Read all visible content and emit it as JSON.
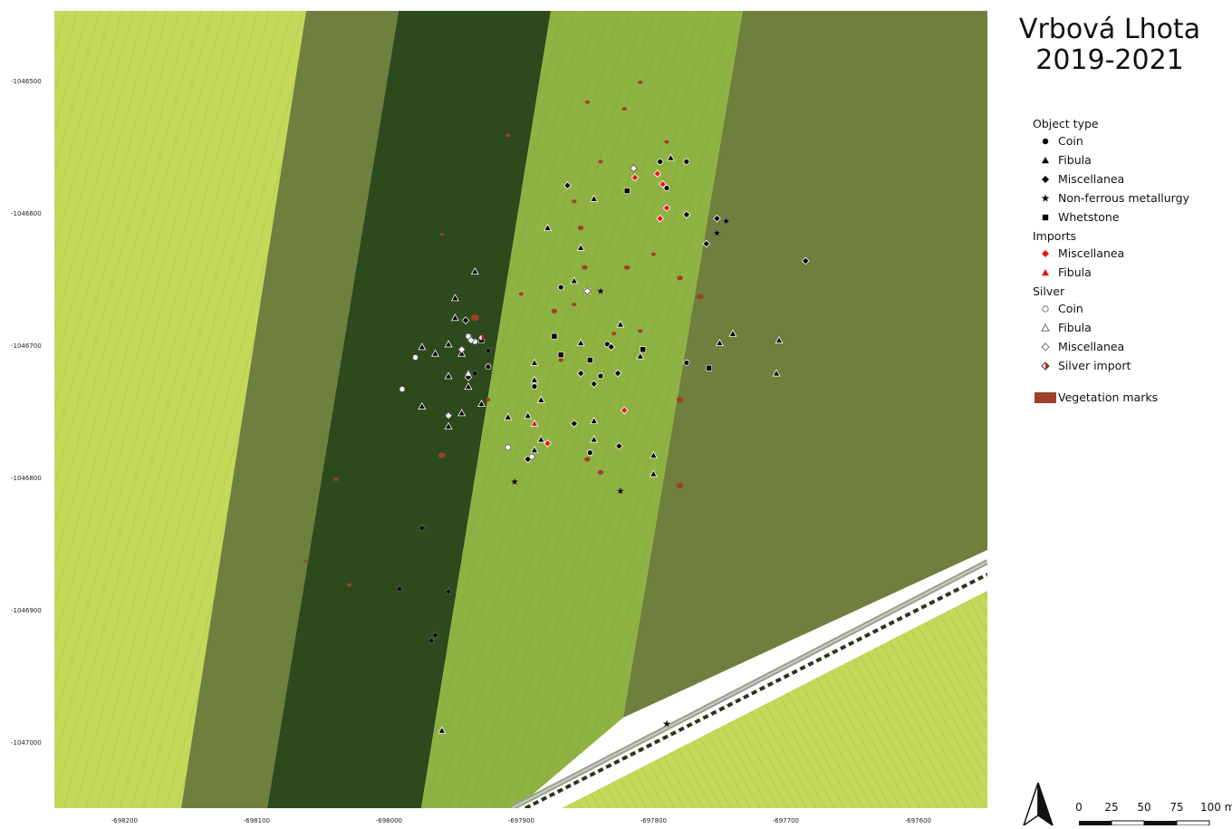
{
  "map": {
    "title_line1": "Vrbová Lhota",
    "title_line2": "2019-2021",
    "y_ticks": [
      "-1046500",
      "-1046600",
      "-1046700",
      "-1046800",
      "-1046900",
      "-1047000"
    ],
    "x_ticks": [
      "-698200",
      "-698100",
      "-698000",
      "-697900",
      "-697800",
      "-697700",
      "-697600"
    ],
    "colors": {
      "field_yellow": "#c4d85a",
      "field_dark": "#2d4a1d",
      "field_mid": "#8fb342",
      "field_olive": "#6e7f3e",
      "vegetation_marks": "#a0402a",
      "import_red": "#e8141a"
    }
  },
  "legend": {
    "object_type_heading": "Object type",
    "object_types": [
      {
        "label": "Coin",
        "icon": "filled-circle-icon"
      },
      {
        "label": "Fibula",
        "icon": "filled-triangle-icon"
      },
      {
        "label": "Miscellanea",
        "icon": "filled-diamond-icon"
      },
      {
        "label": "Non-ferrous metallurgy",
        "icon": "filled-star-icon"
      },
      {
        "label": "Whetstone",
        "icon": "filled-square-icon"
      }
    ],
    "imports_heading": "Imports",
    "imports": [
      {
        "label": "Miscellanea",
        "icon": "red-diamond-icon"
      },
      {
        "label": "Fibula",
        "icon": "red-triangle-icon"
      }
    ],
    "silver_heading": "Silver",
    "silver": [
      {
        "label": "Coin",
        "icon": "open-circle-icon"
      },
      {
        "label": "Fibula",
        "icon": "open-triangle-icon"
      },
      {
        "label": "Miscellanea",
        "icon": "open-diamond-icon"
      },
      {
        "label": "Silver import",
        "icon": "half-red-diamond-icon"
      }
    ],
    "vegetation_label": "Vegetation marks"
  },
  "scalebar": {
    "labels": [
      "0",
      "25",
      "50",
      "75",
      "100 m"
    ]
  },
  "finds": [
    {
      "type": "coin",
      "x": -697795,
      "y": -1046560
    },
    {
      "type": "coin",
      "x": -697790,
      "y": -1046580
    },
    {
      "type": "coin",
      "x": -697775,
      "y": -1046560
    },
    {
      "type": "coin",
      "x": -697870,
      "y": -1046655
    },
    {
      "type": "coin",
      "x": -697835,
      "y": -1046698
    },
    {
      "type": "coin",
      "x": -697925,
      "y": -1046715
    },
    {
      "type": "coin",
      "x": -697840,
      "y": -1046722
    },
    {
      "type": "coin",
      "x": -697775,
      "y": -1046712
    },
    {
      "type": "coin",
      "x": -697848,
      "y": -1046780
    },
    {
      "type": "coin",
      "x": -697890,
      "y": -1046730
    },
    {
      "type": "fibula",
      "x": -697787,
      "y": -1046557
    },
    {
      "type": "fibula",
      "x": -697845,
      "y": -1046588
    },
    {
      "type": "fibula",
      "x": -697880,
      "y": -1046610
    },
    {
      "type": "fibula",
      "x": -697855,
      "y": -1046625
    },
    {
      "type": "fibula",
      "x": -697935,
      "y": -1046643
    },
    {
      "type": "fibula",
      "x": -697950,
      "y": -1046663
    },
    {
      "type": "fibula",
      "x": -697950,
      "y": -1046678
    },
    {
      "type": "fibula",
      "x": -697965,
      "y": -1046705
    },
    {
      "type": "fibula",
      "x": -697955,
      "y": -1046722
    },
    {
      "type": "fibula",
      "x": -697940,
      "y": -1046730
    },
    {
      "type": "fibula",
      "x": -697975,
      "y": -1046700
    },
    {
      "type": "fibula",
      "x": -697955,
      "y": -1046698
    },
    {
      "type": "fibula",
      "x": -697945,
      "y": -1046705
    },
    {
      "type": "fibula",
      "x": -697945,
      "y": -1046750
    },
    {
      "type": "fibula",
      "x": -697955,
      "y": -1046760
    },
    {
      "type": "fibula",
      "x": -697975,
      "y": -1046745
    },
    {
      "type": "fibula",
      "x": -697930,
      "y": -1046743
    },
    {
      "type": "fibula",
      "x": -697895,
      "y": -1046752
    },
    {
      "type": "fibula",
      "x": -697890,
      "y": -1046712
    },
    {
      "type": "fibula",
      "x": -697890,
      "y": -1046725
    },
    {
      "type": "fibula",
      "x": -697885,
      "y": -1046740
    },
    {
      "type": "fibula",
      "x": -697885,
      "y": -1046770
    },
    {
      "type": "fibula",
      "x": -697890,
      "y": -1046778
    },
    {
      "type": "fibula",
      "x": -697860,
      "y": -1046650
    },
    {
      "type": "fibula",
      "x": -697855,
      "y": -1046697
    },
    {
      "type": "fibula",
      "x": -697825,
      "y": -1046683
    },
    {
      "type": "fibula",
      "x": -697845,
      "y": -1046756
    },
    {
      "type": "fibula",
      "x": -697845,
      "y": -1046770
    },
    {
      "type": "fibula",
      "x": -697810,
      "y": -1046707
    },
    {
      "type": "fibula",
      "x": -697800,
      "y": -1046782
    },
    {
      "type": "fibula",
      "x": -697800,
      "y": -1046796
    },
    {
      "type": "fibula",
      "x": -697740,
      "y": -1046690
    },
    {
      "type": "fibula",
      "x": -697705,
      "y": -1046695
    },
    {
      "type": "fibula",
      "x": -697707,
      "y": -1046720
    },
    {
      "type": "fibula",
      "x": -697750,
      "y": -1046697
    },
    {
      "type": "fibula",
      "x": -697910,
      "y": -1046753
    },
    {
      "type": "fibula",
      "x": -697960,
      "y": -1046990
    },
    {
      "type": "misc",
      "x": -697865,
      "y": -1046578
    },
    {
      "type": "misc",
      "x": -697775,
      "y": -1046600
    },
    {
      "type": "misc",
      "x": -697752,
      "y": -1046603
    },
    {
      "type": "misc",
      "x": -697760,
      "y": -1046622
    },
    {
      "type": "misc",
      "x": -697685,
      "y": -1046635
    },
    {
      "type": "misc",
      "x": -697942,
      "y": -1046680
    },
    {
      "type": "misc",
      "x": -697940,
      "y": -1046723
    },
    {
      "type": "misc",
      "x": -697832,
      "y": -1046700
    },
    {
      "type": "misc",
      "x": -697855,
      "y": -1046720
    },
    {
      "type": "misc",
      "x": -697827,
      "y": -1046720
    },
    {
      "type": "misc",
      "x": -697860,
      "y": -1046758
    },
    {
      "type": "misc",
      "x": -697895,
      "y": -1046785
    },
    {
      "type": "misc",
      "x": -697826,
      "y": -1046775
    },
    {
      "type": "misc",
      "x": -697845,
      "y": -1046728
    },
    {
      "type": "star",
      "x": -697745,
      "y": -1046605
    },
    {
      "type": "star",
      "x": -697752,
      "y": -1046614
    },
    {
      "type": "star",
      "x": -697840,
      "y": -1046658
    },
    {
      "type": "star",
      "x": -697925,
      "y": -1046703
    },
    {
      "type": "star",
      "x": -697935,
      "y": -1046720
    },
    {
      "type": "star",
      "x": -697905,
      "y": -1046802
    },
    {
      "type": "star",
      "x": -697825,
      "y": -1046809
    },
    {
      "type": "star",
      "x": -697975,
      "y": -1046837
    },
    {
      "type": "star",
      "x": -697992,
      "y": -1046883
    },
    {
      "type": "star",
      "x": -697955,
      "y": -1046885
    },
    {
      "type": "star",
      "x": -697965,
      "y": -1046918
    },
    {
      "type": "star",
      "x": -697968,
      "y": -1046922
    },
    {
      "type": "star",
      "x": -697790,
      "y": -1046985
    },
    {
      "type": "whetstone",
      "x": -697820,
      "y": -1046582
    },
    {
      "type": "whetstone",
      "x": -697850,
      "y": -1046658
    },
    {
      "type": "whetstone",
      "x": -697875,
      "y": -1046692
    },
    {
      "type": "whetstone",
      "x": -697870,
      "y": -1046706
    },
    {
      "type": "whetstone",
      "x": -697848,
      "y": -1046710
    },
    {
      "type": "whetstone",
      "x": -697808,
      "y": -1046702
    },
    {
      "type": "whetstone",
      "x": -697758,
      "y": -1046716
    },
    {
      "type": "whetstone",
      "x": -697930,
      "y": -1046695
    },
    {
      "type": "imp_misc",
      "x": -697797,
      "y": -1046569
    },
    {
      "type": "imp_misc",
      "x": -697793,
      "y": -1046577
    },
    {
      "type": "imp_misc",
      "x": -697814,
      "y": -1046572
    },
    {
      "type": "imp_misc",
      "x": -697790,
      "y": -1046595
    },
    {
      "type": "imp_misc",
      "x": -697795,
      "y": -1046603
    },
    {
      "type": "imp_misc",
      "x": -697822,
      "y": -1046748
    },
    {
      "type": "imp_misc",
      "x": -697880,
      "y": -1046773
    },
    {
      "type": "imp_fibula",
      "x": -697890,
      "y": -1046758
    },
    {
      "type": "s_coin",
      "x": -697940,
      "y": -1046692
    },
    {
      "type": "s_coin",
      "x": -697935,
      "y": -1046696
    },
    {
      "type": "s_coin",
      "x": -697980,
      "y": -1046708
    },
    {
      "type": "s_coin",
      "x": -697990,
      "y": -1046732
    },
    {
      "type": "s_coin",
      "x": -697910,
      "y": -1046776
    },
    {
      "type": "s_coin",
      "x": -697892,
      "y": -1046783
    },
    {
      "type": "s_tri",
      "x": -697940,
      "y": -1046720
    },
    {
      "type": "s_misc",
      "x": -697815,
      "y": -1046565
    },
    {
      "type": "s_misc",
      "x": -697850,
      "y": -1046658
    },
    {
      "type": "s_misc",
      "x": -697945,
      "y": -1046702
    },
    {
      "type": "s_misc",
      "x": -697955,
      "y": -1046752
    },
    {
      "type": "s_misc",
      "x": -697938,
      "y": -1046695
    },
    {
      "type": "s_imp",
      "x": -697930,
      "y": -1046693
    }
  ],
  "vegetation_marks": [
    {
      "x": -697855,
      "y": -1046610,
      "r": 2.5
    },
    {
      "x": -697840,
      "y": -1046560,
      "r": 2
    },
    {
      "x": -697790,
      "y": -1046545,
      "r": 2
    },
    {
      "x": -697822,
      "y": -1046520,
      "r": 2
    },
    {
      "x": -697850,
      "y": -1046515,
      "r": 2
    },
    {
      "x": -697810,
      "y": -1046500,
      "r": 2
    },
    {
      "x": -697910,
      "y": -1046540,
      "r": 2
    },
    {
      "x": -697860,
      "y": -1046590,
      "r": 2
    },
    {
      "x": -697935,
      "y": -1046678,
      "r": 3.5
    },
    {
      "x": -697960,
      "y": -1046782,
      "r": 3
    },
    {
      "x": -697852,
      "y": -1046640,
      "r": 2.5
    },
    {
      "x": -697820,
      "y": -1046640,
      "r": 2.5
    },
    {
      "x": -697780,
      "y": -1046648,
      "r": 2.5
    },
    {
      "x": -697765,
      "y": -1046662,
      "r": 3
    },
    {
      "x": -697780,
      "y": -1046740,
      "r": 3
    },
    {
      "x": -697780,
      "y": -1046805,
      "r": 3
    },
    {
      "x": -697850,
      "y": -1046785,
      "r": 2.5
    },
    {
      "x": -697840,
      "y": -1046795,
      "r": 2.5
    },
    {
      "x": -697875,
      "y": -1046673,
      "r": 2.5
    },
    {
      "x": -697900,
      "y": -1046660,
      "r": 2
    },
    {
      "x": -697925,
      "y": -1046740,
      "r": 2
    },
    {
      "x": -698030,
      "y": -1046880,
      "r": 2
    },
    {
      "x": -698040,
      "y": -1046800,
      "r": 2
    },
    {
      "x": -697960,
      "y": -1046615,
      "r": 1.5
    },
    {
      "x": -698063,
      "y": -1046862,
      "r": 1.5
    },
    {
      "x": -697830,
      "y": -1046690,
      "r": 2
    },
    {
      "x": -697870,
      "y": -1046710,
      "r": 2
    },
    {
      "x": -697810,
      "y": -1046688,
      "r": 2
    },
    {
      "x": -697800,
      "y": -1046630,
      "r": 2
    },
    {
      "x": -697860,
      "y": -1046668,
      "r": 2
    }
  ]
}
